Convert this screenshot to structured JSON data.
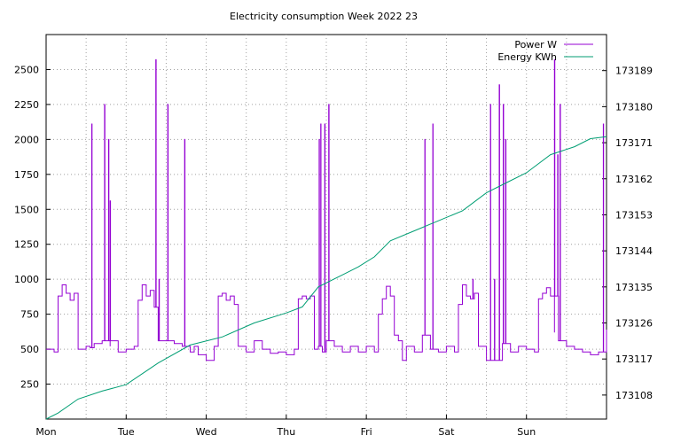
{
  "chart_data": {
    "type": "line",
    "title": "Electricity consumption Week 2022 23",
    "x_ticks": [
      "Mon",
      "Tue",
      "Wed",
      "Thu",
      "Fri",
      "Sat",
      "Sun"
    ],
    "xlim": [
      0,
      7
    ],
    "y_left": {
      "ticks": [
        250,
        500,
        750,
        1000,
        1250,
        1500,
        1750,
        2000,
        2250,
        2500
      ],
      "range": [
        0,
        2750
      ]
    },
    "y_right": {
      "ticks": [
        173108,
        173117,
        173126,
        173135,
        173144,
        173153,
        173162,
        173171,
        173180,
        173189
      ],
      "range": [
        173102,
        173198
      ]
    },
    "grid": true,
    "legend": "top-right",
    "series": [
      {
        "name": "Power W",
        "axis": "left",
        "color": "#9400d3",
        "baseline": [
          [
            0.0,
            500
          ],
          [
            0.1,
            480
          ],
          [
            0.15,
            880
          ],
          [
            0.2,
            960
          ],
          [
            0.25,
            900
          ],
          [
            0.3,
            850
          ],
          [
            0.35,
            900
          ],
          [
            0.4,
            500
          ],
          [
            0.5,
            520
          ],
          [
            0.55,
            510
          ],
          [
            0.6,
            540
          ],
          [
            0.7,
            560
          ],
          [
            0.8,
            520
          ],
          [
            0.9,
            480
          ],
          [
            1.0,
            500
          ],
          [
            1.1,
            520
          ],
          [
            1.15,
            850
          ],
          [
            1.2,
            960
          ],
          [
            1.25,
            880
          ],
          [
            1.3,
            920
          ],
          [
            1.35,
            800
          ],
          [
            1.4,
            560
          ],
          [
            1.5,
            560
          ],
          [
            1.6,
            540
          ],
          [
            1.7,
            520
          ],
          [
            1.8,
            480
          ],
          [
            1.85,
            520
          ],
          [
            1.9,
            460
          ],
          [
            2.0,
            420
          ],
          [
            2.1,
            520
          ],
          [
            2.15,
            880
          ],
          [
            2.2,
            900
          ],
          [
            2.25,
            850
          ],
          [
            2.3,
            880
          ],
          [
            2.35,
            820
          ],
          [
            2.4,
            520
          ],
          [
            2.5,
            480
          ],
          [
            2.6,
            560
          ],
          [
            2.7,
            500
          ],
          [
            2.8,
            470
          ],
          [
            2.9,
            480
          ],
          [
            3.0,
            460
          ],
          [
            3.1,
            500
          ],
          [
            3.15,
            860
          ],
          [
            3.2,
            880
          ],
          [
            3.25,
            860
          ],
          [
            3.3,
            880
          ],
          [
            3.35,
            500
          ],
          [
            3.4,
            520
          ],
          [
            3.45,
            480
          ],
          [
            3.5,
            560
          ],
          [
            3.6,
            520
          ],
          [
            3.7,
            480
          ],
          [
            3.8,
            520
          ],
          [
            3.9,
            480
          ],
          [
            4.0,
            520
          ],
          [
            4.1,
            480
          ],
          [
            4.15,
            750
          ],
          [
            4.2,
            860
          ],
          [
            4.25,
            950
          ],
          [
            4.3,
            880
          ],
          [
            4.35,
            600
          ],
          [
            4.4,
            560
          ],
          [
            4.45,
            420
          ],
          [
            4.5,
            520
          ],
          [
            4.6,
            480
          ],
          [
            4.7,
            600
          ],
          [
            4.8,
            500
          ],
          [
            4.9,
            480
          ],
          [
            5.0,
            520
          ],
          [
            5.1,
            480
          ],
          [
            5.15,
            820
          ],
          [
            5.2,
            960
          ],
          [
            5.25,
            880
          ],
          [
            5.3,
            860
          ],
          [
            5.35,
            900
          ],
          [
            5.4,
            520
          ],
          [
            5.45,
            520
          ],
          [
            5.5,
            420
          ],
          [
            5.6,
            500
          ],
          [
            5.7,
            540
          ],
          [
            5.8,
            480
          ],
          [
            5.9,
            520
          ],
          [
            6.0,
            500
          ],
          [
            6.1,
            480
          ],
          [
            6.15,
            860
          ],
          [
            6.2,
            900
          ],
          [
            6.25,
            940
          ],
          [
            6.3,
            880
          ],
          [
            6.35,
            620
          ],
          [
            6.4,
            560
          ],
          [
            6.5,
            520
          ],
          [
            6.6,
            500
          ],
          [
            6.7,
            480
          ],
          [
            6.8,
            460
          ],
          [
            6.9,
            480
          ],
          [
            7.0,
            640
          ]
        ],
        "spikes": [
          [
            0.57,
            2110
          ],
          [
            0.73,
            2250
          ],
          [
            0.78,
            2000
          ],
          [
            0.8,
            1560
          ],
          [
            1.37,
            2570
          ],
          [
            1.41,
            1000
          ],
          [
            1.52,
            2250
          ],
          [
            1.73,
            2000
          ],
          [
            3.41,
            2000
          ],
          [
            3.43,
            2110
          ],
          [
            3.48,
            2110
          ],
          [
            3.53,
            2250
          ],
          [
            4.73,
            2000
          ],
          [
            4.83,
            2110
          ],
          [
            5.33,
            1000
          ],
          [
            5.55,
            2250
          ],
          [
            5.6,
            1000
          ],
          [
            5.66,
            2390
          ],
          [
            5.71,
            2250
          ],
          [
            5.74,
            2000
          ],
          [
            6.35,
            2570
          ],
          [
            6.39,
            1890
          ],
          [
            6.42,
            2250
          ],
          [
            6.96,
            2110
          ]
        ]
      },
      {
        "name": "Energy KWh",
        "axis": "right",
        "color": "#009e73",
        "points": [
          [
            0.0,
            173102
          ],
          [
            0.15,
            173103.5
          ],
          [
            0.4,
            173107
          ],
          [
            0.7,
            173109
          ],
          [
            1.0,
            173110.6
          ],
          [
            1.4,
            173116
          ],
          [
            1.8,
            173120.5
          ],
          [
            2.2,
            173122.5
          ],
          [
            2.6,
            173126
          ],
          [
            3.0,
            173128.5
          ],
          [
            3.2,
            173130
          ],
          [
            3.4,
            173135
          ],
          [
            3.7,
            173138
          ],
          [
            3.9,
            173140
          ],
          [
            4.1,
            173142.5
          ],
          [
            4.3,
            173146.5
          ],
          [
            4.6,
            173149
          ],
          [
            4.9,
            173151.5
          ],
          [
            5.2,
            173154
          ],
          [
            5.5,
            173158.5
          ],
          [
            5.7,
            173160.5
          ],
          [
            6.0,
            173163.5
          ],
          [
            6.3,
            173168
          ],
          [
            6.6,
            173170
          ],
          [
            6.8,
            173172
          ],
          [
            7.0,
            173172.5
          ]
        ]
      }
    ]
  }
}
